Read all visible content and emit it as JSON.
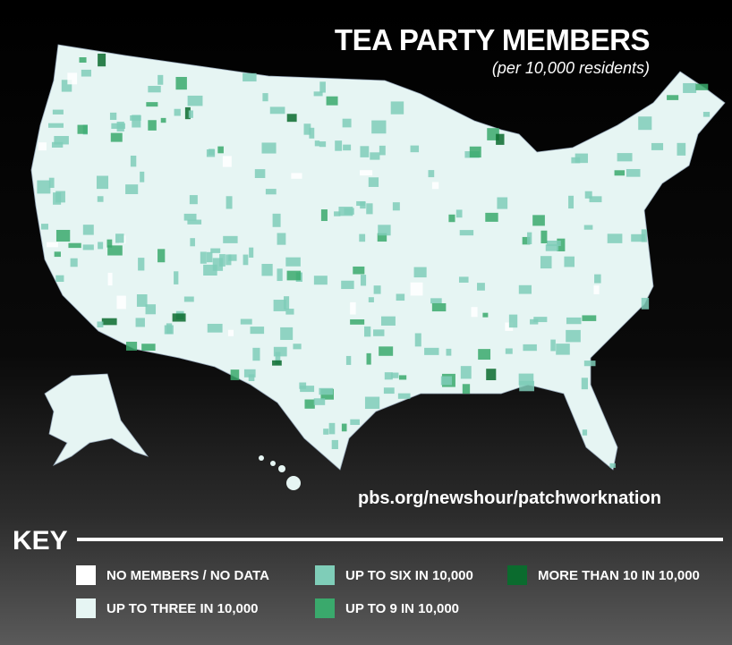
{
  "header": {
    "title": "TEA PARTY MEMBERS",
    "subtitle": "(per 10,000 residents)"
  },
  "source": "pbs.org/newshour/patchworknation",
  "key": {
    "title": "KEY",
    "items": [
      {
        "label": "NO MEMBERS / NO DATA",
        "color": "#ffffff"
      },
      {
        "label": "UP TO THREE IN 10,000",
        "color": "#e6f5f3"
      },
      {
        "label": "UP TO SIX IN 10,000",
        "color": "#7fcdb8"
      },
      {
        "label": "UP TO 9 IN 10,000",
        "color": "#3aa96c"
      },
      {
        "label": "MORE THAN 10 IN 10,000",
        "color": "#0b6b2e"
      }
    ]
  }
}
